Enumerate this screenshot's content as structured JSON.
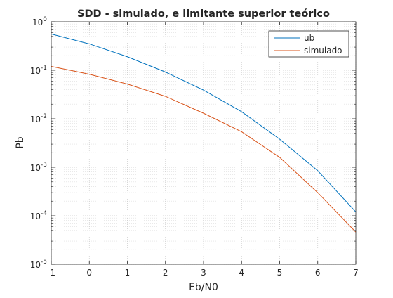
{
  "chart_data": {
    "type": "line",
    "title": "SDD - simulado, e limitante superior teórico",
    "xlabel": "Eb/N0",
    "ylabel": "Pb",
    "xlim": [
      -1,
      7
    ],
    "ylim": [
      1e-05,
      1
    ],
    "y_scale": "log",
    "grid": true,
    "minor_grid": true,
    "legend_position": "top-right",
    "x_ticks": [
      {
        "value": -1,
        "label": "-1"
      },
      {
        "value": 0,
        "label": "0"
      },
      {
        "value": 1,
        "label": "1"
      },
      {
        "value": 2,
        "label": "2"
      },
      {
        "value": 3,
        "label": "3"
      },
      {
        "value": 4,
        "label": "4"
      },
      {
        "value": 5,
        "label": "5"
      },
      {
        "value": 6,
        "label": "6"
      },
      {
        "value": 7,
        "label": "7"
      }
    ],
    "y_ticks": [
      {
        "exp": 0,
        "base": "10",
        "sup": "0"
      },
      {
        "exp": -1,
        "base": "10",
        "sup": "-1"
      },
      {
        "exp": -2,
        "base": "10",
        "sup": "-2"
      },
      {
        "exp": -3,
        "base": "10",
        "sup": "-3"
      },
      {
        "exp": -4,
        "base": "10",
        "sup": "-4"
      },
      {
        "exp": -5,
        "base": "10",
        "sup": "-5"
      }
    ],
    "x": [
      -1,
      0,
      1,
      2,
      3,
      4,
      5,
      6,
      7
    ],
    "series": [
      {
        "name": "ub",
        "color": "#0072bd",
        "values": [
          0.56,
          0.35,
          0.19,
          0.092,
          0.039,
          0.014,
          0.0038,
          0.00085,
          0.00012
        ]
      },
      {
        "name": "simulado",
        "color": "#d95319",
        "values": [
          0.12,
          0.083,
          0.052,
          0.029,
          0.013,
          0.0054,
          0.0016,
          0.0003,
          4.6e-05
        ]
      }
    ]
  }
}
